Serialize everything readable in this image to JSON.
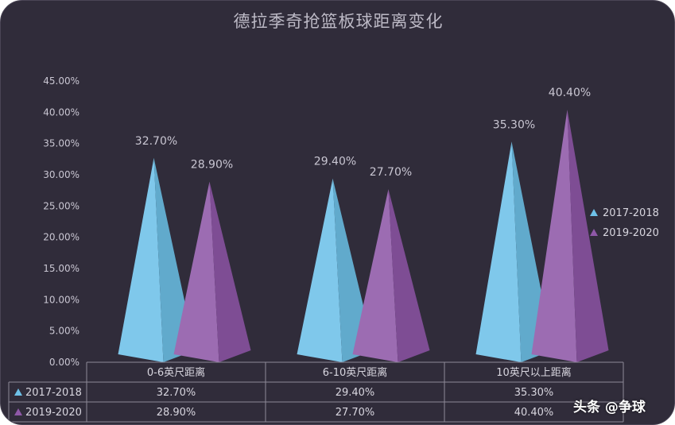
{
  "chart_data": {
    "type": "bar",
    "title": "德拉季奇抢篮板球距离变化",
    "categories": [
      "0-6英尺距离",
      "6-10英尺距离",
      "10英尺以上距离"
    ],
    "series": [
      {
        "name": "2017-2018",
        "values": [
          32.7,
          29.4,
          35.3
        ],
        "labels": [
          "32.70%",
          "29.40%",
          "35.30%"
        ],
        "color": "#6ec1e8"
      },
      {
        "name": "2019-2020",
        "values": [
          28.9,
          27.7,
          40.4
        ],
        "labels": [
          "28.90%",
          "27.70%",
          "40.40%"
        ],
        "color": "#8f58a8"
      }
    ],
    "ylim": [
      0,
      45
    ],
    "yticks": [
      "0.00%",
      "5.00%",
      "10.00%",
      "15.00%",
      "20.00%",
      "25.00%",
      "30.00%",
      "35.00%",
      "40.00%",
      "45.00%"
    ],
    "legend_position": "right",
    "data_table": true,
    "grid": false,
    "shape": "pyramid"
  },
  "watermark": "头条 @争球"
}
